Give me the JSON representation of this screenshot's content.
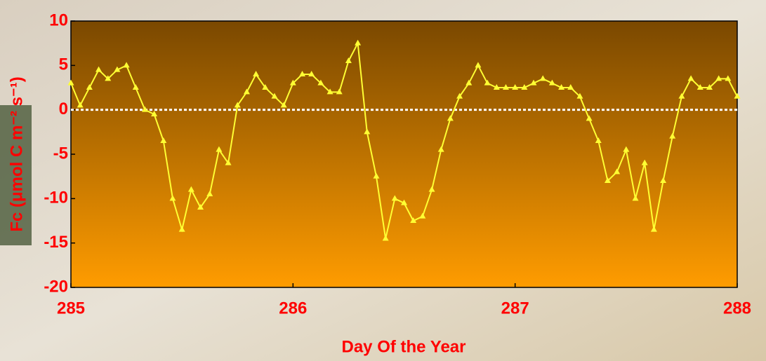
{
  "chart_data": {
    "type": "line",
    "x_label": "Day Of the Year",
    "y_label": "Fc (μmol C m⁻² s⁻¹)",
    "x": [
      285,
      285.0417,
      285.0833,
      285.125,
      285.1667,
      285.2083,
      285.25,
      285.2917,
      285.3333,
      285.375,
      285.4167,
      285.4583,
      285.5,
      285.5417,
      285.5833,
      285.625,
      285.6667,
      285.7083,
      285.75,
      285.7917,
      285.8333,
      285.875,
      285.9167,
      285.9583,
      286,
      286.0417,
      286.0833,
      286.125,
      286.1667,
      286.2083,
      286.25,
      286.2917,
      286.3333,
      286.375,
      286.4167,
      286.4583,
      286.5,
      286.5417,
      286.5833,
      286.625,
      286.6667,
      286.7083,
      286.75,
      286.7917,
      286.8333,
      286.875,
      286.9167,
      286.9583,
      287,
      287.0417,
      287.0833,
      287.125,
      287.1667,
      287.2083,
      287.25,
      287.2917,
      287.3333,
      287.375,
      287.4167,
      287.4583,
      287.5,
      287.5417,
      287.5833,
      287.625,
      287.6667,
      287.7083,
      287.75,
      287.7917,
      287.8333,
      287.875,
      287.9167,
      287.9583,
      288
    ],
    "series": [
      {
        "color": "#ffff33",
        "values": [
          3,
          0.5,
          2.5,
          4.5,
          3.5,
          4.5,
          5,
          2.5,
          0,
          -0.5,
          -3.5,
          -10,
          -13.5,
          -9,
          -11,
          -9.5,
          -4.5,
          -6,
          0.5,
          2,
          4,
          2.5,
          1.5,
          0.5,
          3,
          4,
          4,
          3,
          2,
          2,
          5.5,
          7.5,
          -2.5,
          -7.5,
          -14.5,
          -10,
          -10.5,
          -12.5,
          -12,
          -9,
          -4.5,
          -1,
          1.5,
          3,
          5,
          3,
          2.5,
          2.5,
          2.5,
          2.5,
          3,
          3.5,
          3,
          2.5,
          2.5,
          1.5,
          -1,
          -3.5,
          -8,
          -7,
          -4.5,
          -10,
          -6,
          -13.5,
          -8,
          -3,
          1.5,
          3.5,
          2.5,
          2.5,
          3.5,
          3.5,
          1.5
        ]
      }
    ],
    "xlim": [
      285,
      288
    ],
    "xticks": [
      285,
      286,
      287,
      288
    ],
    "ylim": [
      -20,
      10
    ],
    "yticks": [
      -20,
      -15,
      -10,
      -5,
      0,
      5,
      10
    ],
    "zero_line": true
  }
}
